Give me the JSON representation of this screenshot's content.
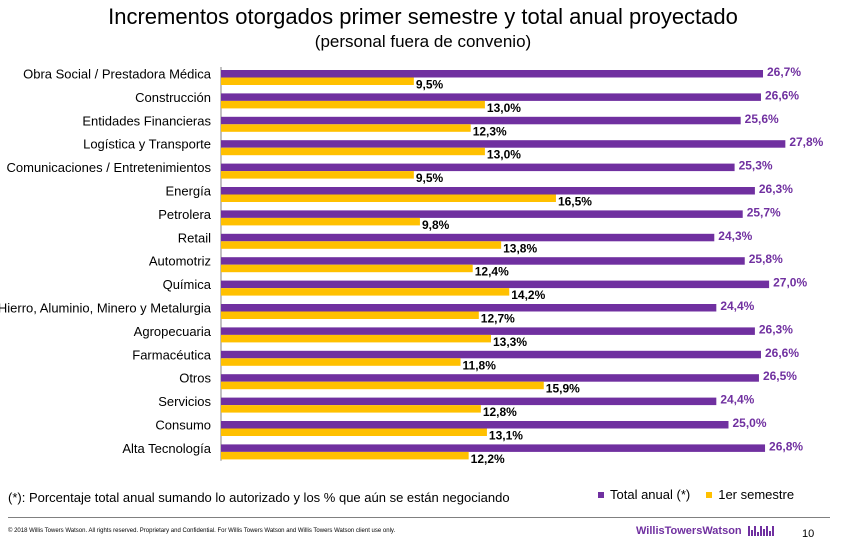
{
  "header": {
    "title": "Incrementos otorgados primer semestre y total anual proyectado",
    "subtitle": "(personal fuera de convenio)"
  },
  "chart_data": {
    "type": "bar",
    "orientation": "horizontal",
    "categories": [
      "Obra Social / Prestadora Médica",
      "Construcción",
      "Entidades Financieras",
      "Logística y Transporte",
      "Comunicaciones / Entretenimientos",
      "Energía",
      "Petrolera",
      "Retail",
      "Automotriz",
      "Química",
      "Hierro, Aluminio, Minero y Metalurgia",
      "Agropecuaria",
      "Farmacéutica",
      "Otros",
      "Servicios",
      "Consumo",
      "Alta Tecnología"
    ],
    "series": [
      {
        "name": "Total anual  (*)",
        "color": "#7030A0",
        "values": [
          26.7,
          26.6,
          25.6,
          27.8,
          25.3,
          26.3,
          25.7,
          24.3,
          25.8,
          27.0,
          24.4,
          26.3,
          26.6,
          26.5,
          24.4,
          25.0,
          26.8
        ],
        "labels": [
          "26,7%",
          "26,6%",
          "25,6%",
          "27,8%",
          "25,3%",
          "26,3%",
          "25,7%",
          "24,3%",
          "25,8%",
          "27,0%",
          "24,4%",
          "26,3%",
          "26,6%",
          "26,5%",
          "24,4%",
          "25,0%",
          "26,8%"
        ]
      },
      {
        "name": "1er semestre",
        "color": "#FFC000",
        "values": [
          9.5,
          13.0,
          12.3,
          13.0,
          9.5,
          16.5,
          9.8,
          13.8,
          12.4,
          14.2,
          12.7,
          13.3,
          11.8,
          15.9,
          12.8,
          13.1,
          12.2
        ],
        "labels": [
          "9,5%",
          "13,0%",
          "12,3%",
          "13,0%",
          "9,5%",
          "16,5%",
          "9,8%",
          "13,8%",
          "12,4%",
          "14,2%",
          "12,7%",
          "13,3%",
          "11,8%",
          "15,9%",
          "12,8%",
          "13,1%",
          "12,2%"
        ]
      }
    ],
    "xlim": [
      0,
      28
    ],
    "grid": false,
    "legend": "bottom-right"
  },
  "footer": {
    "footnote": "(*): Porcentaje total anual sumando lo autorizado y los % que aún se están negociando",
    "copyright": "© 2018 Willis Towers Watson. All rights reserved. Proprietary and Confidential. For Willis Towers Watson and Willis Towers Watson client use only.",
    "brand": "WillisTowersWatson",
    "page_number": "10"
  }
}
